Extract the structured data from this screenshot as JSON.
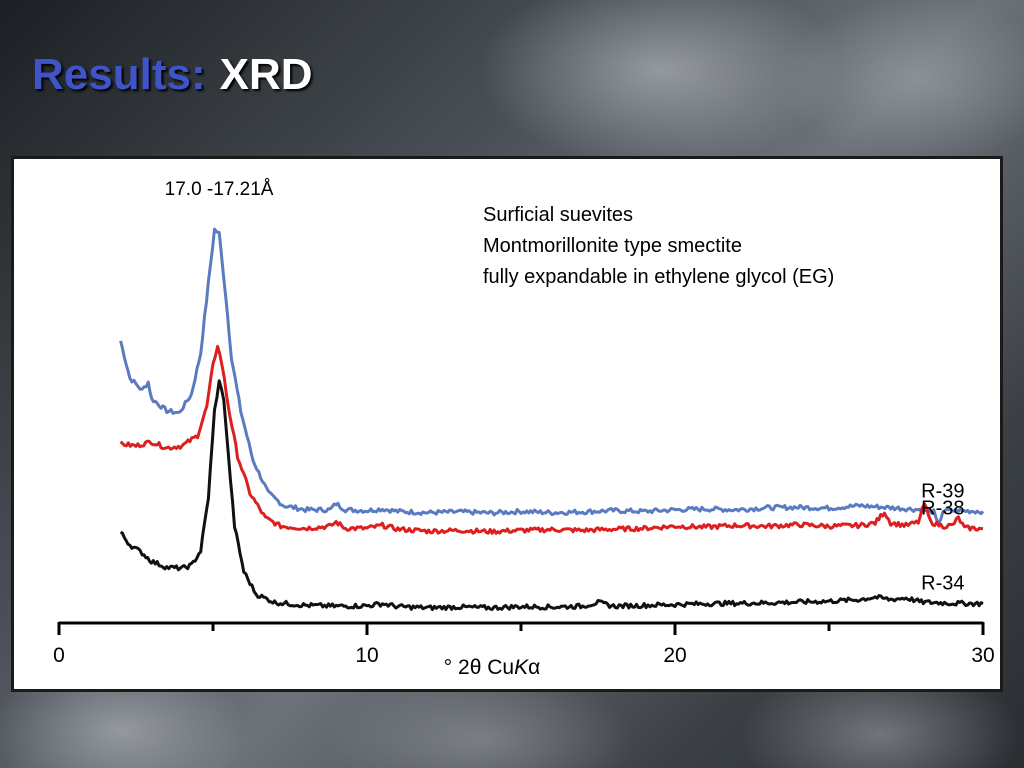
{
  "slide": {
    "title_part1": "Results:",
    "title_part2": "XRD"
  },
  "colors": {
    "title_accent": "#3f54c7",
    "series_r39": "#5b7bc0",
    "series_r38": "#dd1f1f",
    "series_r34": "#111111"
  },
  "chart_data": {
    "type": "line",
    "xlabel": "° 2θ CuKα",
    "ylabel": "",
    "xlim": [
      0,
      30
    ],
    "x_ticks": [
      0,
      10,
      20,
      30
    ],
    "y_ticks_visible": false,
    "grid": false,
    "legend": "labels at right end of each trace",
    "peak_annotation": {
      "text": "17.0 -17.21Å",
      "x": 5.1
    },
    "notes": [
      "Surficial suevites",
      "Montmorillonite type smectite",
      "fully expandable in ethylene glycol (EG)"
    ],
    "y_unit": "relative intensity (offset traces, 0-100 scale)",
    "series": [
      {
        "name": "R-39",
        "points": [
          [
            2.0,
            68
          ],
          [
            2.3,
            59
          ],
          [
            2.7,
            56
          ],
          [
            2.9,
            58
          ],
          [
            3.0,
            54
          ],
          [
            3.5,
            51
          ],
          [
            3.9,
            50.5
          ],
          [
            4.3,
            55
          ],
          [
            4.6,
            65
          ],
          [
            4.85,
            82
          ],
          [
            5.05,
            95
          ],
          [
            5.2,
            94
          ],
          [
            5.4,
            80
          ],
          [
            5.6,
            64
          ],
          [
            5.9,
            51
          ],
          [
            6.3,
            39
          ],
          [
            6.8,
            31
          ],
          [
            7.3,
            28
          ],
          [
            8.0,
            27
          ],
          [
            8.8,
            27
          ],
          [
            9.0,
            28.5
          ],
          [
            9.3,
            27
          ],
          [
            10.0,
            26.8
          ],
          [
            10.5,
            27.2
          ],
          [
            11,
            26.6
          ],
          [
            12,
            26.3
          ],
          [
            13,
            26.5
          ],
          [
            14,
            26.2
          ],
          [
            15,
            26.6
          ],
          [
            16,
            26.3
          ],
          [
            17,
            26.5
          ],
          [
            18,
            26.8
          ],
          [
            19,
            26.6
          ],
          [
            20,
            27
          ],
          [
            21,
            27.2
          ],
          [
            22,
            27
          ],
          [
            23,
            27.5
          ],
          [
            24,
            27.6
          ],
          [
            25,
            27.4
          ],
          [
            26,
            28
          ],
          [
            27,
            27.5
          ],
          [
            28,
            27
          ],
          [
            28.4,
            26.5
          ],
          [
            28.55,
            23
          ],
          [
            28.7,
            26.8
          ],
          [
            29,
            26.8
          ],
          [
            30,
            26.6
          ]
        ]
      },
      {
        "name": "R-38",
        "points": [
          [
            2.0,
            43
          ],
          [
            2.5,
            42.5
          ],
          [
            3.0,
            43.5
          ],
          [
            3.5,
            42
          ],
          [
            4.0,
            42.5
          ],
          [
            4.5,
            45
          ],
          [
            4.8,
            52
          ],
          [
            5.0,
            62
          ],
          [
            5.15,
            67
          ],
          [
            5.3,
            62
          ],
          [
            5.5,
            52
          ],
          [
            5.8,
            40
          ],
          [
            6.2,
            31
          ],
          [
            6.7,
            25
          ],
          [
            7.2,
            23
          ],
          [
            8.0,
            22.5
          ],
          [
            8.8,
            23
          ],
          [
            9.0,
            24
          ],
          [
            9.3,
            22.5
          ],
          [
            10,
            22.5
          ],
          [
            10.5,
            23.2
          ],
          [
            11,
            22.3
          ],
          [
            12,
            21.8
          ],
          [
            13,
            22
          ],
          [
            14,
            21.7
          ],
          [
            15,
            22
          ],
          [
            16,
            22.2
          ],
          [
            17,
            22
          ],
          [
            18,
            22.3
          ],
          [
            19,
            22.5
          ],
          [
            20,
            23
          ],
          [
            21,
            22.8
          ],
          [
            22,
            23.2
          ],
          [
            23,
            23
          ],
          [
            24,
            23.4
          ],
          [
            25,
            23
          ],
          [
            26,
            23.2
          ],
          [
            26.5,
            23.8
          ],
          [
            26.8,
            26.5
          ],
          [
            27.0,
            23.8
          ],
          [
            27.5,
            23.2
          ],
          [
            27.9,
            24
          ],
          [
            28.1,
            28.5
          ],
          [
            28.3,
            24
          ],
          [
            28.7,
            23
          ],
          [
            29.0,
            23.2
          ],
          [
            29.2,
            25
          ],
          [
            29.4,
            22.6
          ],
          [
            30,
            22.4
          ]
        ]
      },
      {
        "name": "R-34",
        "points": [
          [
            2.0,
            21.5
          ],
          [
            2.3,
            18.5
          ],
          [
            2.7,
            16.5
          ],
          [
            3.0,
            14.5
          ],
          [
            3.5,
            13
          ],
          [
            4.0,
            12.8
          ],
          [
            4.3,
            13.5
          ],
          [
            4.6,
            17
          ],
          [
            4.85,
            30
          ],
          [
            5.05,
            51
          ],
          [
            5.2,
            58
          ],
          [
            5.35,
            54
          ],
          [
            5.5,
            40
          ],
          [
            5.7,
            23
          ],
          [
            6.0,
            12
          ],
          [
            6.4,
            6.5
          ],
          [
            7,
            4.5
          ],
          [
            8,
            3.8
          ],
          [
            9,
            3.6
          ],
          [
            10,
            3.7
          ],
          [
            10.5,
            4.2
          ],
          [
            11,
            3.5
          ],
          [
            12,
            3.2
          ],
          [
            13,
            3.4
          ],
          [
            14,
            3.2
          ],
          [
            15,
            3.5
          ],
          [
            16,
            3.4
          ],
          [
            17,
            3.6
          ],
          [
            17.5,
            4.5
          ],
          [
            18,
            3.6
          ],
          [
            19,
            3.8
          ],
          [
            20,
            4
          ],
          [
            21,
            4.2
          ],
          [
            22,
            4.3
          ],
          [
            23,
            4.4
          ],
          [
            24,
            4.6
          ],
          [
            25,
            4.8
          ],
          [
            26,
            5.2
          ],
          [
            26.5,
            5.8
          ],
          [
            27,
            5.2
          ],
          [
            27.5,
            5.6
          ],
          [
            28,
            4.6
          ],
          [
            29,
            4.3
          ],
          [
            30,
            4.2
          ]
        ]
      }
    ]
  }
}
